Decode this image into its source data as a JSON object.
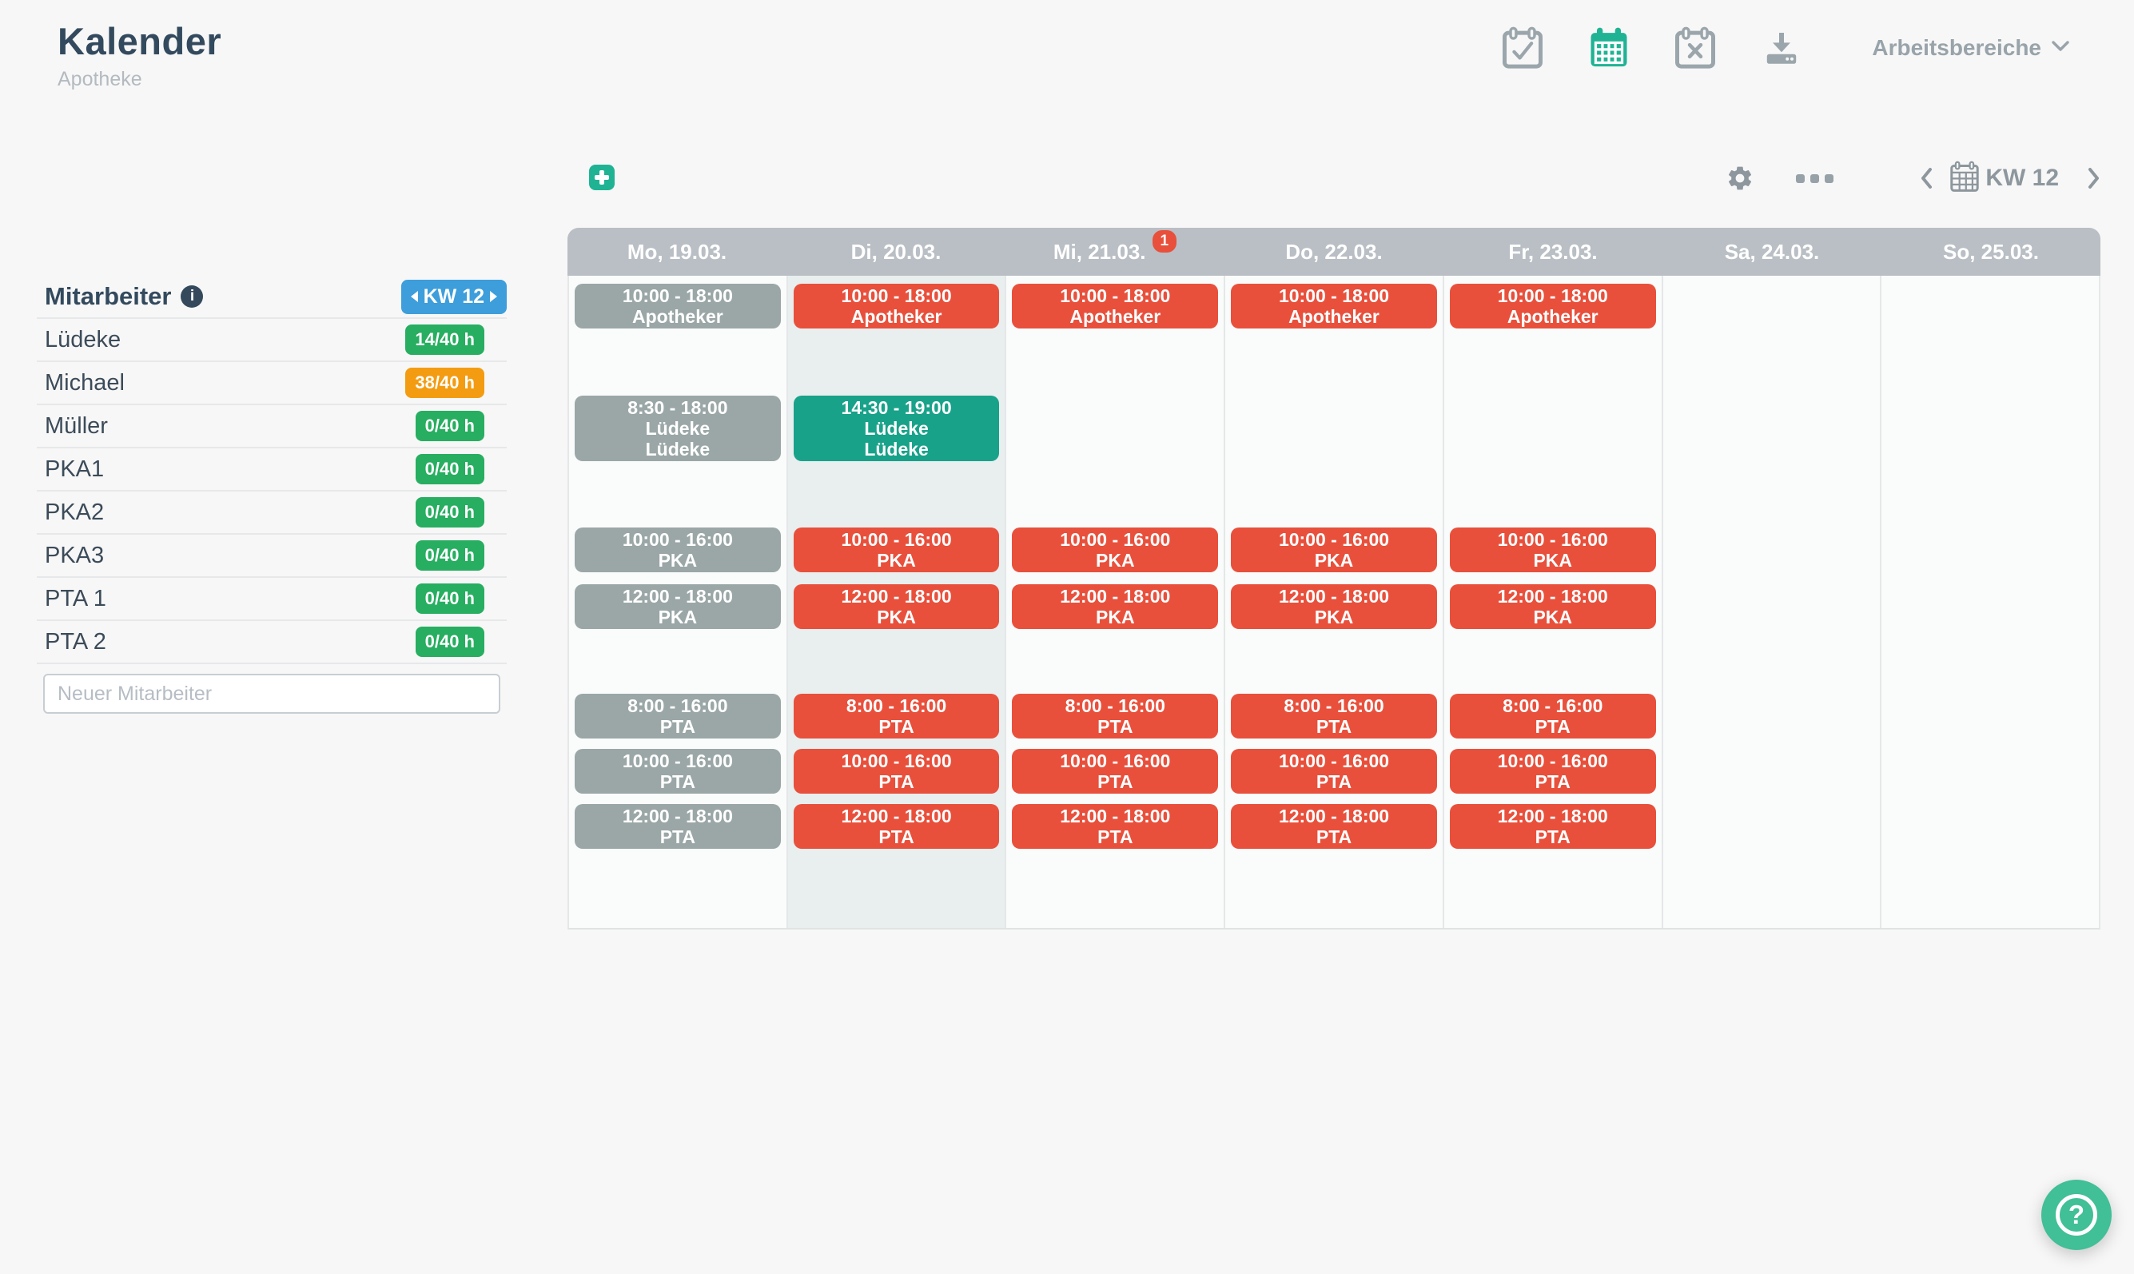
{
  "header": {
    "title": "Kalender",
    "subtitle": "Apotheke",
    "workspaces_label": "Arbeitsbereiche"
  },
  "sidebar": {
    "title": "Mitarbeiter",
    "week_badge": "KW 12",
    "employees": [
      {
        "name": "Lüdeke",
        "hours": "14/40 h",
        "status": "green"
      },
      {
        "name": "Michael",
        "hours": "38/40 h",
        "status": "orange"
      },
      {
        "name": "Müller",
        "hours": "0/40 h",
        "status": "green"
      },
      {
        "name": "PKA1",
        "hours": "0/40 h",
        "status": "green"
      },
      {
        "name": "PKA2",
        "hours": "0/40 h",
        "status": "green"
      },
      {
        "name": "PKA3",
        "hours": "0/40 h",
        "status": "green"
      },
      {
        "name": "PTA 1",
        "hours": "0/40 h",
        "status": "green"
      },
      {
        "name": "PTA 2",
        "hours": "0/40 h",
        "status": "green"
      }
    ],
    "new_employee_placeholder": "Neuer Mitarbeiter"
  },
  "toolbar": {
    "week_label": "KW 12"
  },
  "calendar": {
    "days": [
      {
        "label": "Mo, 19.03.",
        "badge": null,
        "highlight": false
      },
      {
        "label": "Di, 20.03.",
        "badge": null,
        "highlight": true
      },
      {
        "label": "Mi, 21.03.",
        "badge": "1",
        "highlight": false
      },
      {
        "label": "Do, 22.03.",
        "badge": null,
        "highlight": false
      },
      {
        "label": "Fr, 23.03.",
        "badge": null,
        "highlight": false
      },
      {
        "label": "Sa, 24.03.",
        "badge": null,
        "highlight": false
      },
      {
        "label": "So, 25.03.",
        "badge": null,
        "highlight": false
      }
    ],
    "shifts": [
      {
        "day": 0,
        "row": 0,
        "time": "10:00 - 18:00",
        "lines": [
          "Apotheker"
        ],
        "color": "gray"
      },
      {
        "day": 1,
        "row": 0,
        "time": "10:00 - 18:00",
        "lines": [
          "Apotheker"
        ],
        "color": "red"
      },
      {
        "day": 2,
        "row": 0,
        "time": "10:00 - 18:00",
        "lines": [
          "Apotheker"
        ],
        "color": "red"
      },
      {
        "day": 3,
        "row": 0,
        "time": "10:00 - 18:00",
        "lines": [
          "Apotheker"
        ],
        "color": "red"
      },
      {
        "day": 4,
        "row": 0,
        "time": "10:00 - 18:00",
        "lines": [
          "Apotheker"
        ],
        "color": "red"
      },
      {
        "day": 0,
        "row": 1,
        "time": "8:30 - 18:00",
        "lines": [
          "Lüdeke",
          "Lüdeke"
        ],
        "color": "gray"
      },
      {
        "day": 1,
        "row": 1,
        "time": "14:30 - 19:00",
        "lines": [
          "Lüdeke",
          "Lüdeke"
        ],
        "color": "teal"
      },
      {
        "day": 0,
        "row": 2,
        "time": "10:00 - 16:00",
        "lines": [
          "PKA"
        ],
        "color": "gray"
      },
      {
        "day": 1,
        "row": 2,
        "time": "10:00 - 16:00",
        "lines": [
          "PKA"
        ],
        "color": "red"
      },
      {
        "day": 2,
        "row": 2,
        "time": "10:00 - 16:00",
        "lines": [
          "PKA"
        ],
        "color": "red"
      },
      {
        "day": 3,
        "row": 2,
        "time": "10:00 - 16:00",
        "lines": [
          "PKA"
        ],
        "color": "red"
      },
      {
        "day": 4,
        "row": 2,
        "time": "10:00 - 16:00",
        "lines": [
          "PKA"
        ],
        "color": "red"
      },
      {
        "day": 0,
        "row": 3,
        "time": "12:00 - 18:00",
        "lines": [
          "PKA"
        ],
        "color": "gray"
      },
      {
        "day": 1,
        "row": 3,
        "time": "12:00 - 18:00",
        "lines": [
          "PKA"
        ],
        "color": "red"
      },
      {
        "day": 2,
        "row": 3,
        "time": "12:00 - 18:00",
        "lines": [
          "PKA"
        ],
        "color": "red"
      },
      {
        "day": 3,
        "row": 3,
        "time": "12:00 - 18:00",
        "lines": [
          "PKA"
        ],
        "color": "red"
      },
      {
        "day": 4,
        "row": 3,
        "time": "12:00 - 18:00",
        "lines": [
          "PKA"
        ],
        "color": "red"
      },
      {
        "day": 0,
        "row": 4,
        "time": "8:00 - 16:00",
        "lines": [
          "PTA"
        ],
        "color": "gray"
      },
      {
        "day": 1,
        "row": 4,
        "time": "8:00 - 16:00",
        "lines": [
          "PTA"
        ],
        "color": "red"
      },
      {
        "day": 2,
        "row": 4,
        "time": "8:00 - 16:00",
        "lines": [
          "PTA"
        ],
        "color": "red"
      },
      {
        "day": 3,
        "row": 4,
        "time": "8:00 - 16:00",
        "lines": [
          "PTA"
        ],
        "color": "red"
      },
      {
        "day": 4,
        "row": 4,
        "time": "8:00 - 16:00",
        "lines": [
          "PTA"
        ],
        "color": "red"
      },
      {
        "day": 0,
        "row": 5,
        "time": "10:00 - 16:00",
        "lines": [
          "PTA"
        ],
        "color": "gray"
      },
      {
        "day": 1,
        "row": 5,
        "time": "10:00 - 16:00",
        "lines": [
          "PTA"
        ],
        "color": "red"
      },
      {
        "day": 2,
        "row": 5,
        "time": "10:00 - 16:00",
        "lines": [
          "PTA"
        ],
        "color": "red"
      },
      {
        "day": 3,
        "row": 5,
        "time": "10:00 - 16:00",
        "lines": [
          "PTA"
        ],
        "color": "red"
      },
      {
        "day": 4,
        "row": 5,
        "time": "10:00 - 16:00",
        "lines": [
          "PTA"
        ],
        "color": "red"
      },
      {
        "day": 0,
        "row": 6,
        "time": "12:00 - 18:00",
        "lines": [
          "PTA"
        ],
        "color": "gray"
      },
      {
        "day": 1,
        "row": 6,
        "time": "12:00 - 18:00",
        "lines": [
          "PTA"
        ],
        "color": "red"
      },
      {
        "day": 2,
        "row": 6,
        "time": "12:00 - 18:00",
        "lines": [
          "PTA"
        ],
        "color": "red"
      },
      {
        "day": 3,
        "row": 6,
        "time": "12:00 - 18:00",
        "lines": [
          "PTA"
        ],
        "color": "red"
      },
      {
        "day": 4,
        "row": 6,
        "time": "12:00 - 18:00",
        "lines": [
          "PTA"
        ],
        "color": "red"
      }
    ]
  },
  "help": {
    "label": "?"
  },
  "colors": {
    "brand-teal": "#1fb394",
    "shift-red": "#e8503c",
    "shift-gray": "#9ba7a7",
    "shift-teal": "#18a289",
    "accent-red": "#e8503c",
    "badge-green": "#27ae60",
    "badge-orange": "#f39c12",
    "badge-blue": "#3d9edb",
    "day-header": "#b9bfc4",
    "col-highlight": "#e9eeee"
  }
}
